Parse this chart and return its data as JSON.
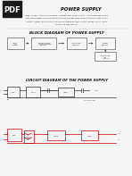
{
  "bg_color": "#f5f5f5",
  "pdf_bg": "#1a1a1a",
  "pdf_text": "PDF",
  "title": "POWER SUPPLY",
  "body_text_lines": [
    "Power supply is the first and most important part of any project. In the proposed project",
    "the power supply circuit is used to provide the regulated supply to the ICs used in this",
    "project. Power supply circuit consists of step down transformer, rectifier circuit, filter",
    "circuit and regulator IC."
  ],
  "block_title": "BLOCK DIAGRAM OF POWER SUPPLY",
  "circuit_title": "CIRCUIT DIAGRAM OF THE POWER SUPPLY",
  "block_boxes": [
    "INPUT\nAC\nSUPPLY",
    "STEP DOWN\nTRANSFORMER\nCIRCUIT",
    "RECTIFIER\nCIRCUIT",
    "FILTER\nCIRCUIT"
  ],
  "regulated_box": "REGULATED\nDC\nOUTPUT",
  "text_color": "#222222",
  "title_color": "#111111",
  "box_border": "#555555",
  "arrow_color": "#333333"
}
